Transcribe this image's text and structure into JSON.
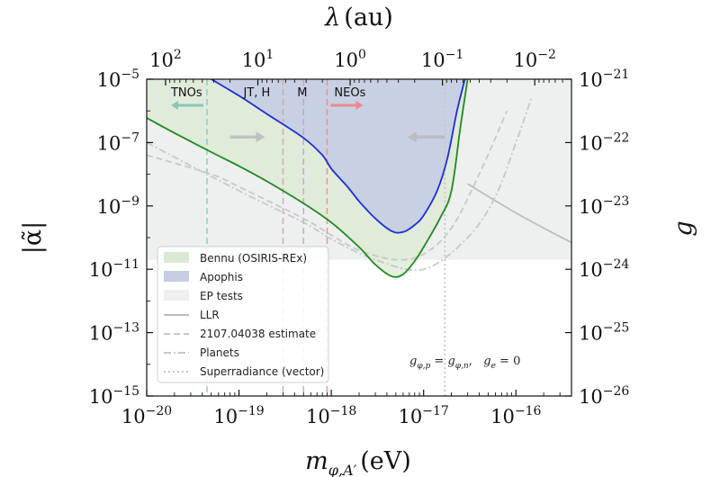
{
  "chart_data": {
    "type": "line",
    "title": "",
    "xlabel": "m_{φ,A'} (eV)",
    "xlabel_main": "m",
    "xlabel_sub": "φ,A′",
    "xlabel_unit": "(eV)",
    "ylabel": "|α̃|",
    "top_xlabel": "λ (au)",
    "top_xlabel_symbol": "λ",
    "top_xlabel_unit": "(au)",
    "right_ylabel": "g",
    "xscale": "log",
    "yscale": "log",
    "xlim": [
      1e-20,
      4e-16
    ],
    "ylim": [
      1e-15,
      1e-05
    ],
    "right_ylim": [
      1e-26,
      1e-21
    ],
    "x_ticks": [
      {
        "value": 1e-20,
        "base": "10",
        "exp": "−20"
      },
      {
        "value": 1e-19,
        "base": "10",
        "exp": "−19"
      },
      {
        "value": 1e-18,
        "base": "10",
        "exp": "−18"
      },
      {
        "value": 1e-17,
        "base": "10",
        "exp": "−17"
      },
      {
        "value": 1e-16,
        "base": "10",
        "exp": "−16"
      }
    ],
    "y_ticks": [
      {
        "value": 1e-05,
        "base": "10",
        "exp": "−5"
      },
      {
        "value": 1e-07,
        "base": "10",
        "exp": "−7"
      },
      {
        "value": 1e-09,
        "base": "10",
        "exp": "−9"
      },
      {
        "value": 1e-11,
        "base": "10",
        "exp": "−11"
      },
      {
        "value": 1e-13,
        "base": "10",
        "exp": "−13"
      },
      {
        "value": 1e-15,
        "base": "10",
        "exp": "−15"
      }
    ],
    "top_ticks": [
      {
        "value": 100,
        "base": "10",
        "exp": "2"
      },
      {
        "value": 10,
        "base": "10",
        "exp": "1"
      },
      {
        "value": 1,
        "base": "10",
        "exp": "0"
      },
      {
        "value": 0.1,
        "base": "10",
        "exp": "−1"
      },
      {
        "value": 0.01,
        "base": "10",
        "exp": "−2"
      }
    ],
    "right_ticks": [
      {
        "value": 1e-21,
        "base": "10",
        "exp": "−21"
      },
      {
        "value": 1e-22,
        "base": "10",
        "exp": "−22"
      },
      {
        "value": 1e-23,
        "base": "10",
        "exp": "−23"
      },
      {
        "value": 1e-24,
        "base": "10",
        "exp": "−24"
      },
      {
        "value": 1e-25,
        "base": "10",
        "exp": "−25"
      },
      {
        "value": 1e-26,
        "base": "10",
        "exp": "−26"
      }
    ],
    "lambda_conversion_au_times_eV": 1.6e-18,
    "series": [
      {
        "name": "Bennu (OSIRIS-REx)",
        "style": "solid",
        "color": "#1f8a1f",
        "fill": "#dce9d2",
        "x": [
          1e-20,
          2e-20,
          5e-20,
          1e-19,
          2e-19,
          5e-19,
          1e-18,
          2e-18,
          3e-18,
          4.5e-18,
          6e-18,
          8e-18,
          1e-17,
          1.5e-17,
          2e-17,
          2.5e-17,
          3e-17
        ],
        "y": [
          6e-07,
          2e-07,
          5e-08,
          1.8e-08,
          6e-09,
          1.2e-09,
          3e-10,
          5e-11,
          1.4e-11,
          6e-12,
          7e-12,
          1.8e-11,
          5e-11,
          4e-10,
          3e-09,
          3e-07,
          1e-05
        ]
      },
      {
        "name": "Apophis",
        "style": "solid",
        "color": "#1c2ed6",
        "fill": "#c5cde3",
        "x": [
          5e-20,
          1e-19,
          2e-19,
          5e-19,
          8e-19,
          1e-18,
          1.5e-18,
          2e-18,
          3e-18,
          4.5e-18,
          6e-18,
          8e-18,
          1e-17,
          1.4e-17,
          1.8e-17,
          2.3e-17,
          2.8e-17
        ],
        "y": [
          1e-05,
          3e-06,
          8e-07,
          1.4e-07,
          4e-08,
          1.5e-08,
          4e-09,
          1.4e-09,
          4e-10,
          1.6e-10,
          1.5e-10,
          2.5e-10,
          5e-10,
          3e-09,
          3e-08,
          1e-06,
          1e-05
        ]
      },
      {
        "name": "EP tests",
        "style": "region",
        "color": "#eef0f0",
        "y_upper": 1e-05,
        "y_lower": 2e-11
      },
      {
        "name": "LLR",
        "style": "solid",
        "color": "#bdbdbd",
        "x": [
          3e-17,
          5e-17,
          1e-16,
          2e-16,
          4e-16
        ],
        "y": [
          5e-09,
          2e-09,
          6e-10,
          2e-10,
          7e-11
        ]
      },
      {
        "name": "2107.04038 estimate",
        "style": "dashed",
        "color": "#c8c8c8",
        "x": [
          1e-20,
          5e-20,
          1e-19,
          5e-19,
          1e-18,
          2e-18,
          5e-18,
          1e-17,
          2e-17,
          4e-17,
          8e-17
        ],
        "y": [
          4e-08,
          1e-08,
          4e-09,
          4e-10,
          1.2e-10,
          4e-11,
          2e-11,
          3e-11,
          2e-10,
          1e-08,
          1e-06
        ]
      },
      {
        "name": "Planets",
        "style": "dashdot",
        "color": "#c8c8c8",
        "x": [
          1e-20,
          1e-19,
          5e-19,
          1e-18,
          3e-18,
          1e-17,
          3e-17,
          6e-17,
          1e-16,
          1.5e-16
        ],
        "y": [
          1e-07,
          3e-09,
          3e-10,
          9e-11,
          2e-11,
          1e-11,
          1e-10,
          2e-09,
          1e-07,
          3e-06
        ]
      },
      {
        "name": "Superradiance (vector)",
        "style": "dotted",
        "color": "#c8c8c8",
        "x": [
          1.7e-17,
          1.7e-17
        ],
        "y": [
          1e-15,
          1e-05
        ]
      }
    ],
    "vertical_markers": [
      {
        "label": "TNOs",
        "x": 4.5e-20,
        "color": "#8ac7bd",
        "arrow": "left"
      },
      {
        "label": "JT, H",
        "x": 3e-19,
        "color": "#c9a9a2",
        "arrow": "none"
      },
      {
        "label": "M",
        "x": 5e-19,
        "color": "#c79adb",
        "arrow": "none"
      },
      {
        "label": "NEOs",
        "x": 9e-19,
        "color": "#ec8a8a",
        "arrow": "right"
      }
    ],
    "gray_arrows": [
      {
        "x_from": 8e-20,
        "x_to": 1.6e-19,
        "y": 1.5e-07,
        "direction": "right"
      },
      {
        "x_from": 1.7e-17,
        "x_to": 8e-18,
        "y": 1.5e-07,
        "direction": "left"
      }
    ],
    "annotation": "g_{φ,p} = g_{φ,n},   g_e = 0",
    "annotation_parts": {
      "g": "g",
      "sub1": "φ,p",
      "eq": " = ",
      "sub2": "φ,n",
      "sep": ",   ",
      "sub3": "e",
      "tail": " = 0"
    },
    "legend_position": "lower-left",
    "grid": false
  }
}
